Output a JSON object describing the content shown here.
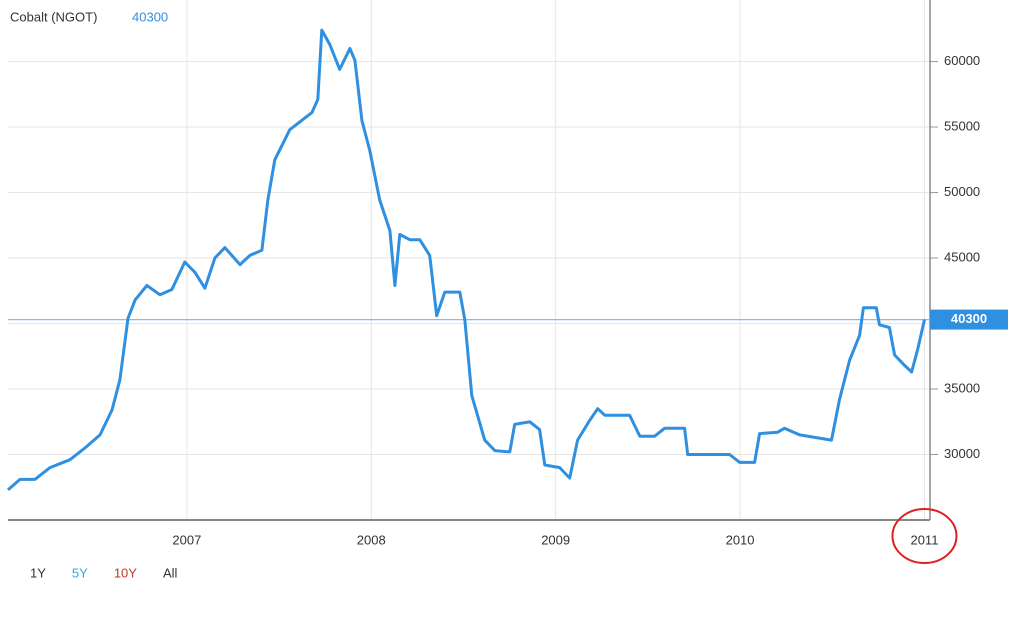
{
  "chart_data": {
    "type": "line",
    "title": "Cobalt (NGOT)",
    "price_text": "40300",
    "x": [
      2006.03,
      2006.095,
      2006.176,
      2006.258,
      2006.366,
      2006.447,
      2006.529,
      2006.594,
      2006.637,
      2006.681,
      2006.719,
      2006.783,
      2006.854,
      2006.919,
      2006.989,
      2007.044,
      2007.098,
      2007.152,
      2007.206,
      2007.288,
      2007.342,
      2007.407,
      2007.439,
      2007.477,
      2007.558,
      2007.64,
      2007.678,
      2007.71,
      2007.732,
      2007.775,
      2007.829,
      2007.884,
      2007.911,
      2007.949,
      2007.992,
      2008.046,
      2008.101,
      2008.128,
      2008.155,
      2008.209,
      2008.263,
      2008.317,
      2008.355,
      2008.399,
      2008.48,
      2008.507,
      2008.545,
      2008.615,
      2008.67,
      2008.751,
      2008.778,
      2008.859,
      2008.913,
      2008.941,
      2009.022,
      2009.076,
      2009.119,
      2009.184,
      2009.228,
      2009.266,
      2009.401,
      2009.456,
      2009.537,
      2009.591,
      2009.699,
      2009.716,
      2009.943,
      2009.998,
      2010.079,
      2010.106,
      2010.204,
      2010.241,
      2010.323,
      2010.496,
      2010.539,
      2010.594,
      2010.648,
      2010.669,
      2010.739,
      2010.756,
      2010.81,
      2010.838,
      2010.892,
      2010.93,
      2010.963,
      2011.0
    ],
    "series": [
      {
        "name": "Cobalt",
        "color": "#2f8fe0",
        "values": [
          27300,
          28100,
          28100,
          29000,
          29600,
          30500,
          31500,
          33400,
          35700,
          40400,
          41800,
          42900,
          42200,
          42600,
          44700,
          43900,
          42700,
          45000,
          45800,
          44500,
          45200,
          45600,
          49400,
          52500,
          54800,
          55700,
          56100,
          57100,
          62400,
          61300,
          59400,
          61000,
          60100,
          55500,
          53200,
          49400,
          47100,
          42900,
          46800,
          46400,
          46400,
          45200,
          40600,
          42400,
          42400,
          40300,
          34500,
          31100,
          30300,
          30200,
          32300,
          32500,
          31900,
          29200,
          29000,
          28200,
          31100,
          32600,
          33500,
          33000,
          33000,
          31400,
          31400,
          32000,
          32000,
          30000,
          30000,
          29400,
          29400,
          31600,
          31700,
          32000,
          31500,
          31100,
          34200,
          37200,
          39100,
          41200,
          41200,
          39900,
          39700,
          37600,
          36800,
          36300,
          38000,
          40300
        ]
      }
    ],
    "current": 40300,
    "current_label": "40300",
    "xlim": [
      2006.03,
      2011.03
    ],
    "ylim": [
      25000,
      64700
    ],
    "xticks": [
      2007,
      2008,
      2009,
      2010,
      2011
    ],
    "yticks": [
      30000,
      35000,
      40000,
      45000,
      50000,
      55000,
      60000
    ],
    "grid": true,
    "range_buttons": [
      {
        "label": "1Y",
        "color": "#333333"
      },
      {
        "label": "5Y",
        "color": "#2fa8e0"
      },
      {
        "label": "10Y",
        "color": "#c0392b"
      },
      {
        "label": "All",
        "color": "#333333"
      }
    ]
  }
}
